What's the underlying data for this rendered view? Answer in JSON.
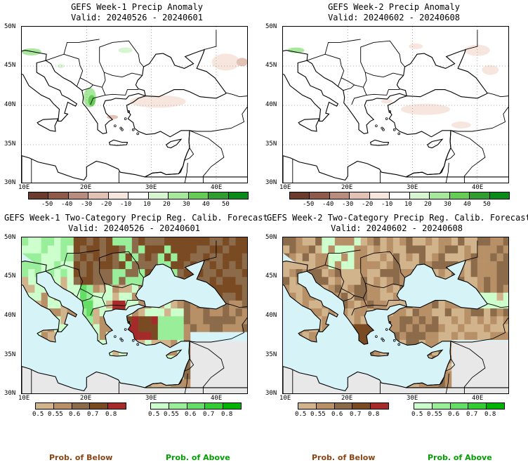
{
  "panels": [
    {
      "id": "tl",
      "title": "GEFS Week-1 Precip Anomaly",
      "valid": "Valid: 20240526 - 20240601"
    },
    {
      "id": "tr",
      "title": "GEFS Week-2 Precip Anomaly",
      "valid": "Valid: 20240602 - 20240608"
    },
    {
      "id": "bl",
      "title": "GEFS Week-1 Two-Category Precip Reg. Calib. Forecast",
      "valid": "Valid: 20240526 - 20240601"
    },
    {
      "id": "br",
      "title": "GEFS Week-2 Two-Category Precip Reg. Calib. Forecast",
      "valid": "Valid: 20240602 - 20240608"
    }
  ],
  "axes": {
    "lat_labels": [
      "50N",
      "45N",
      "40N",
      "35N",
      "30N"
    ],
    "lon_labels": [
      "10E",
      "20E",
      "30E",
      "40E"
    ]
  },
  "anomaly_scale": {
    "labels": [
      "-50",
      "-40",
      "-30",
      "-20",
      "-10",
      "10",
      "20",
      "30",
      "40",
      "50"
    ],
    "colors": [
      "#6b3b2e",
      "#8f5a4a",
      "#b98c80",
      "#e3c2b6",
      "#f6e6de",
      "#ffffff",
      "#d6f5d0",
      "#a8e89c",
      "#66cc55",
      "#2f9e2f",
      "#0a8a17"
    ]
  },
  "prob_below": {
    "labels": [
      "0.5",
      "0.55",
      "0.6",
      "0.7",
      "0.8"
    ],
    "colors": [
      "#d2b48c",
      "#b89067",
      "#8b6b4a",
      "#7a4a23",
      "#a52a2a"
    ],
    "caption": "Prob. of Below",
    "caption_color": "#8b4513"
  },
  "prob_above": {
    "labels": [
      "0.5",
      "0.55",
      "0.6",
      "0.7",
      "0.8"
    ],
    "colors": [
      "#ccffcc",
      "#99ee99",
      "#66dd66",
      "#33cc33",
      "#00b300"
    ],
    "caption": "Prob. of Above",
    "caption_color": "#00a000"
  },
  "map_colors": {
    "sea": "#d6f3f8",
    "land_nodata": "#e8e8e8"
  }
}
